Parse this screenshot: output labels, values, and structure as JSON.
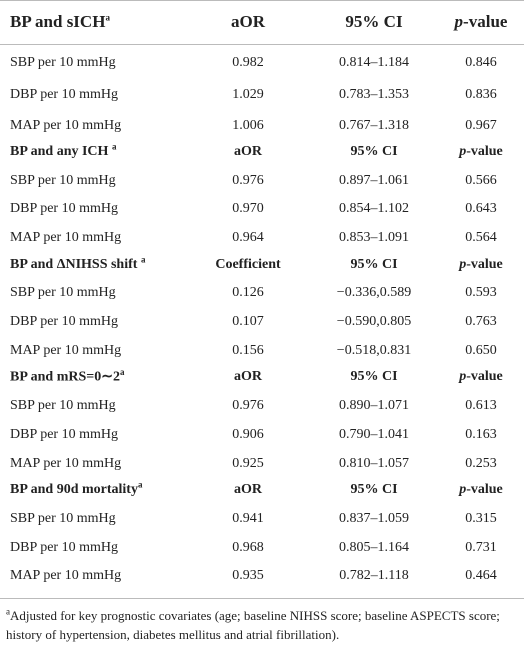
{
  "table": {
    "sections": [
      {
        "header": {
          "label": {
            "text": "BP and sICH",
            "note": "a"
          },
          "columns": [
            {
              "text": "aOR"
            },
            {
              "text": "95% CI"
            },
            {
              "italic": "p",
              "text": "-value"
            }
          ]
        },
        "rows": [
          [
            "SBP per 10 mmHg",
            "0.982",
            "0.814–1.184",
            "0.846"
          ],
          [
            "DBP per 10 mmHg",
            "1.029",
            "0.783–1.353",
            "0.836"
          ],
          [
            "MAP per 10 mmHg",
            "1.006",
            "0.767–1.318",
            "0.967"
          ]
        ]
      },
      {
        "header": {
          "label": {
            "text": "BP and any ICH ",
            "note": "a"
          },
          "columns": [
            {
              "text": "aOR"
            },
            {
              "text": "95% CI"
            },
            {
              "italic": "p",
              "text": "-value"
            }
          ]
        },
        "rows": [
          [
            "SBP per 10 mmHg",
            "0.976",
            "0.897–1.061",
            "0.566"
          ],
          [
            "DBP per 10 mmHg",
            "0.970",
            "0.854–1.102",
            "0.643"
          ],
          [
            "MAP per 10 mmHg",
            "0.964",
            "0.853–1.091",
            "0.564"
          ]
        ]
      },
      {
        "header": {
          "label": {
            "text": "BP and ΔNIHSS shift ",
            "note": "a"
          },
          "columns": [
            {
              "text": "Coefficient"
            },
            {
              "text": "95% CI"
            },
            {
              "italic": "p",
              "text": "-value"
            }
          ]
        },
        "rows": [
          [
            "SBP per 10 mmHg",
            "0.126",
            "−0.336,0.589",
            "0.593"
          ],
          [
            "DBP per 10 mmHg",
            "0.107",
            "−0.590,0.805",
            "0.763"
          ],
          [
            "MAP per 10 mmHg",
            "0.156",
            "−0.518,0.831",
            "0.650"
          ]
        ]
      },
      {
        "header": {
          "label": {
            "text": "BP and mRS=0∼2",
            "note": "a"
          },
          "columns": [
            {
              "text": "aOR"
            },
            {
              "text": "95% CI"
            },
            {
              "italic": "p",
              "text": "-value"
            }
          ]
        },
        "rows": [
          [
            "SBP per 10 mmHg",
            "0.976",
            "0.890–1.071",
            "0.613"
          ],
          [
            "DBP per 10 mmHg",
            "0.906",
            "0.790–1.041",
            "0.163"
          ],
          [
            "MAP per 10 mmHg",
            "0.925",
            "0.810–1.057",
            "0.253"
          ]
        ]
      },
      {
        "header": {
          "label": {
            "text": "BP and 90d mortality",
            "note": "a"
          },
          "columns": [
            {
              "text": "aOR"
            },
            {
              "text": "95% CI"
            },
            {
              "italic": "p",
              "text": "-value"
            }
          ]
        },
        "rows": [
          [
            "SBP per 10 mmHg",
            "0.941",
            "0.837–1.059",
            "0.315"
          ],
          [
            "DBP per 10 mmHg",
            "0.968",
            "0.805–1.164",
            "0.731"
          ],
          [
            "MAP per 10 mmHg",
            "0.935",
            "0.782–1.118",
            "0.464"
          ]
        ]
      }
    ],
    "footnote": {
      "note": "a",
      "text": "Adjusted for key prognostic covariates (age; baseline NIHSS score; baseline ASPECTS score; history of hypertension, diabetes mellitus and atrial fibrillation)."
    }
  }
}
